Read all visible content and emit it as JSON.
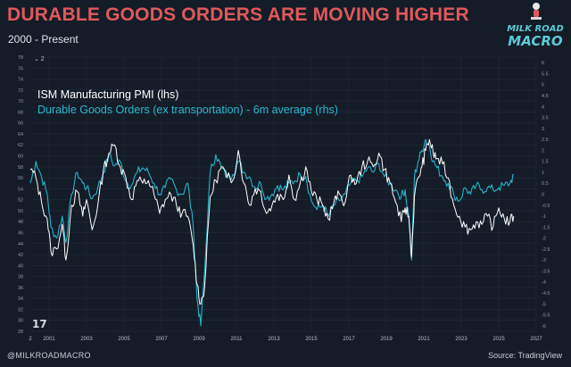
{
  "header": {
    "title": "DURABLE GOODS ORDERS ARE MOVING HIGHER",
    "subtitle": "2000 - Present"
  },
  "logo": {
    "line1": "MILK ROAD",
    "line2": "MACRO"
  },
  "footer": {
    "handle": "@MILKROADMACRO",
    "source": "Source: TradingView"
  },
  "chart_ui": {
    "toggle_label": "⌄ 2",
    "tv_mark": "17"
  },
  "colors": {
    "ism": "#ffffff",
    "durable": "#26b3ca",
    "title": "#e0595b",
    "background": "#141c28"
  },
  "chart_data": {
    "type": "line",
    "title": "DURABLE GOODS ORDERS ARE MOVING HIGHER",
    "subtitle": "2000 - Present",
    "x_ticks": [
      "2",
      "2001",
      "2003",
      "2005",
      "2007",
      "2009",
      "2011",
      "2013",
      "2015",
      "2017",
      "2019",
      "2021",
      "2023",
      "2025",
      "2027"
    ],
    "xlim": [
      2000,
      2027
    ],
    "left_axis": {
      "ticks": [
        "78",
        "76",
        "74",
        "72",
        "70",
        "68",
        "66",
        "64",
        "62",
        "60",
        "58",
        "56",
        "54",
        "52",
        "50",
        "48",
        "46",
        "44",
        "42",
        "40",
        "38",
        "36",
        "34",
        "32",
        "30",
        "28"
      ],
      "ylim": [
        28,
        78
      ]
    },
    "right_axis": {
      "ticks": [
        "6",
        "5.5",
        "5",
        "4.5",
        "4",
        "3.5",
        "3",
        "2.5",
        "2",
        "1.5",
        "1",
        "0.5",
        "0",
        "-0.5",
        "-1",
        "-1.5",
        "-2",
        "-2.5",
        "-3",
        "-3.5",
        "-4",
        "-4.5",
        "-5",
        "-5.5",
        "-6"
      ],
      "ylim": [
        -6.25,
        6.25
      ]
    },
    "series": [
      {
        "name": "ISM Manufacturing PMI (lhs)",
        "axis": "left",
        "x": [
          2000.0,
          2000.3,
          2000.6,
          2000.9,
          2001.1,
          2001.4,
          2001.7,
          2001.9,
          2002.2,
          2002.5,
          2002.8,
          2003.0,
          2003.3,
          2003.6,
          2003.9,
          2004.2,
          2004.5,
          2004.8,
          2005.1,
          2005.4,
          2005.7,
          2006.0,
          2006.3,
          2006.6,
          2006.9,
          2007.2,
          2007.5,
          2007.8,
          2008.1,
          2008.4,
          2008.7,
          2008.9,
          2009.1,
          2009.3,
          2009.6,
          2009.9,
          2010.2,
          2010.5,
          2010.8,
          2011.1,
          2011.4,
          2011.7,
          2012.0,
          2012.3,
          2012.6,
          2012.9,
          2013.2,
          2013.5,
          2013.8,
          2014.1,
          2014.4,
          2014.7,
          2015.0,
          2015.3,
          2015.6,
          2015.9,
          2016.2,
          2016.5,
          2016.8,
          2017.1,
          2017.4,
          2017.7,
          2018.0,
          2018.3,
          2018.6,
          2018.9,
          2019.2,
          2019.5,
          2019.8,
          2020.0,
          2020.2,
          2020.35,
          2020.5,
          2020.7,
          2020.9,
          2021.1,
          2021.3,
          2021.5,
          2021.7,
          2022.0,
          2022.3,
          2022.6,
          2022.9,
          2023.2,
          2023.5,
          2023.8,
          2024.1,
          2024.4,
          2024.7,
          2025.0,
          2025.3,
          2025.6,
          2025.8
        ],
        "y": [
          57.5,
          56.0,
          51.5,
          48.5,
          42.5,
          43.0,
          47.5,
          41.0,
          51.0,
          53.5,
          49.0,
          52.0,
          46.5,
          51.0,
          57.5,
          60.5,
          62.0,
          58.0,
          56.0,
          52.0,
          55.5,
          55.0,
          55.5,
          53.0,
          49.5,
          52.0,
          53.0,
          51.0,
          49.5,
          49.0,
          43.5,
          36.5,
          33.0,
          36.0,
          52.5,
          55.5,
          58.0,
          56.0,
          55.5,
          61.0,
          55.0,
          51.0,
          54.0,
          53.5,
          49.5,
          51.0,
          53.0,
          52.0,
          56.5,
          52.0,
          55.0,
          58.0,
          53.5,
          52.0,
          51.0,
          48.5,
          51.5,
          53.0,
          51.5,
          56.5,
          55.0,
          58.0,
          59.0,
          58.0,
          60.5,
          57.5,
          55.0,
          51.5,
          48.0,
          50.5,
          49.0,
          41.5,
          52.5,
          56.0,
          58.0,
          61.0,
          63.0,
          60.5,
          59.5,
          58.5,
          56.0,
          51.0,
          49.0,
          47.0,
          46.5,
          48.0,
          47.5,
          49.0,
          47.0,
          50.5,
          48.5,
          48.0,
          49.0
        ]
      },
      {
        "name": "Durable Goods Orders (ex transportation) - 6m average (rhs)",
        "axis": "right",
        "x": [
          2000.0,
          2000.3,
          2000.6,
          2000.9,
          2001.1,
          2001.4,
          2001.7,
          2001.9,
          2002.2,
          2002.5,
          2002.8,
          2003.0,
          2003.3,
          2003.6,
          2003.9,
          2004.2,
          2004.5,
          2004.8,
          2005.1,
          2005.4,
          2005.7,
          2006.0,
          2006.3,
          2006.6,
          2006.9,
          2007.2,
          2007.5,
          2007.8,
          2008.1,
          2008.4,
          2008.7,
          2008.9,
          2009.1,
          2009.3,
          2009.6,
          2009.9,
          2010.2,
          2010.5,
          2010.8,
          2011.1,
          2011.4,
          2011.7,
          2012.0,
          2012.3,
          2012.6,
          2012.9,
          2013.2,
          2013.5,
          2013.8,
          2014.1,
          2014.4,
          2014.7,
          2015.0,
          2015.3,
          2015.6,
          2015.9,
          2016.2,
          2016.5,
          2016.8,
          2017.1,
          2017.4,
          2017.7,
          2018.0,
          2018.3,
          2018.6,
          2018.9,
          2019.2,
          2019.5,
          2019.8,
          2020.0,
          2020.2,
          2020.35,
          2020.5,
          2020.7,
          2020.9,
          2021.1,
          2021.3,
          2021.5,
          2021.7,
          2022.0,
          2022.3,
          2022.6,
          2022.9,
          2023.2,
          2023.5,
          2023.8,
          2024.1,
          2024.4,
          2024.7,
          2025.0,
          2025.3,
          2025.6,
          2025.8
        ],
        "y": [
          0.5,
          1.5,
          0.8,
          0.0,
          -1.5,
          -2.0,
          -1.0,
          -2.2,
          0.0,
          1.0,
          0.5,
          0.3,
          -0.2,
          0.3,
          1.0,
          1.8,
          1.3,
          1.5,
          0.6,
          0.4,
          1.0,
          1.2,
          1.0,
          0.5,
          0.0,
          0.3,
          0.7,
          0.2,
          0.0,
          0.5,
          -1.5,
          -4.8,
          -6.0,
          -3.5,
          1.0,
          1.8,
          1.2,
          0.8,
          0.9,
          1.5,
          1.0,
          0.8,
          0.3,
          0.5,
          -0.2,
          0.0,
          0.4,
          0.2,
          0.5,
          0.6,
          0.9,
          0.8,
          -0.3,
          -0.7,
          -0.5,
          -1.0,
          -0.5,
          -0.3,
          0.0,
          0.5,
          0.6,
          0.8,
          1.2,
          1.0,
          1.4,
          0.8,
          0.5,
          0.2,
          -0.1,
          0.2,
          -1.0,
          -3.0,
          0.8,
          1.5,
          2.0,
          2.5,
          2.2,
          1.5,
          1.2,
          0.8,
          0.5,
          0.0,
          -0.3,
          0.3,
          0.0,
          0.4,
          0.2,
          0.3,
          0.2,
          0.3,
          0.4,
          0.5,
          0.9
        ]
      }
    ],
    "grid": true,
    "legend_position": "top-left"
  }
}
